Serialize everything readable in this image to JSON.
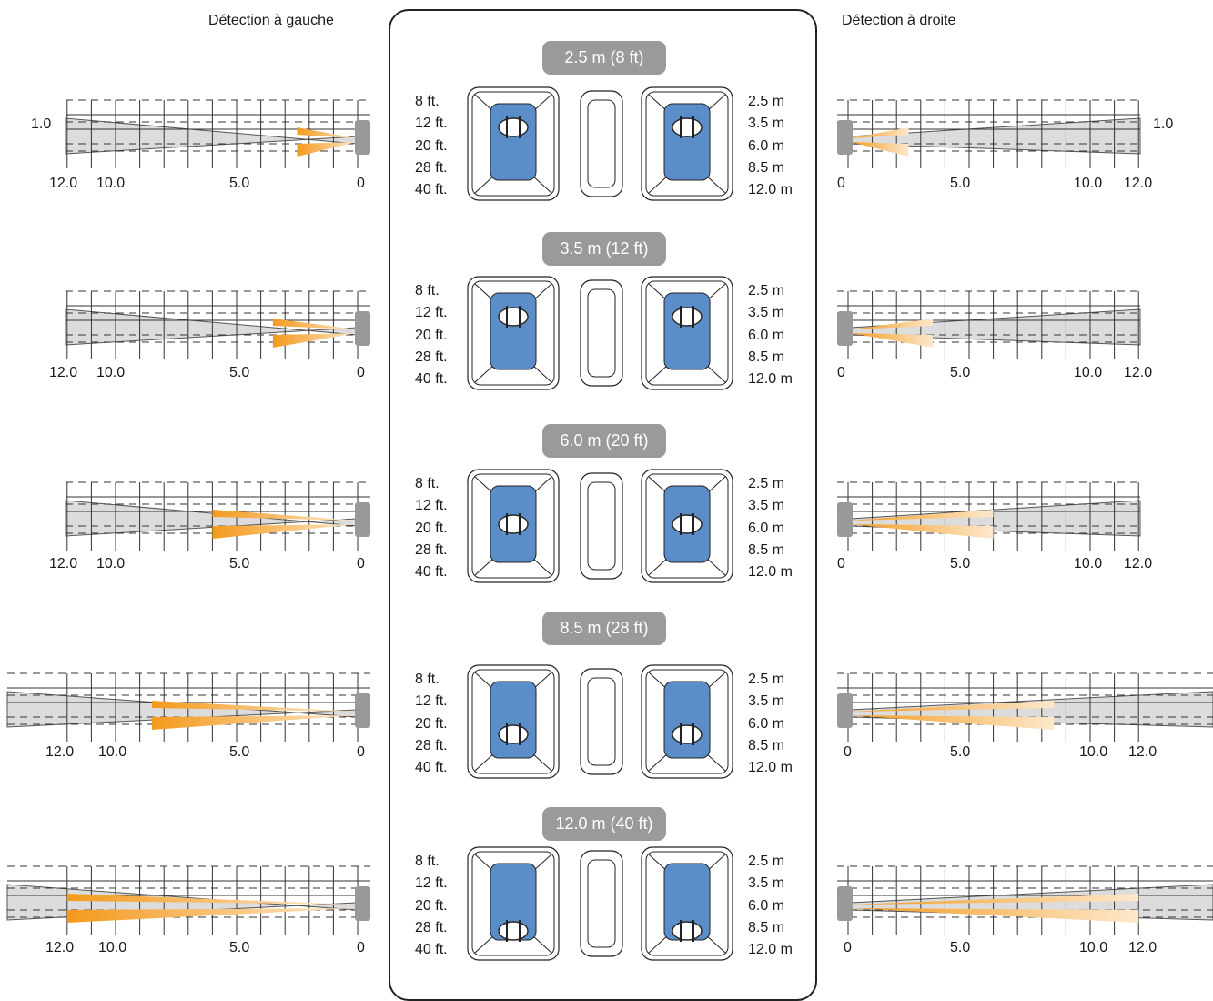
{
  "titles": {
    "left": "Détection à gauche",
    "right": "Détection à droite"
  },
  "rows": [
    {
      "range_label": "2.5 m (8 ft)",
      "range_m": 2.5,
      "highlight": 2
    },
    {
      "range_label": "3.5 m (12 ft)",
      "range_m": 3.5,
      "highlight": 2
    },
    {
      "range_label": "6.0 m (20 ft)",
      "range_m": 6.0,
      "highlight": 3
    },
    {
      "range_label": "8.5 m (28 ft)",
      "range_m": 8.5,
      "highlight": 4
    },
    {
      "range_label": "12.0 m (40 ft)",
      "range_m": 12.0,
      "highlight": 5
    }
  ],
  "ft_labels": [
    "8 ft.",
    "12 ft.",
    "20 ft.",
    "28 ft.",
    "40 ft."
  ],
  "m_labels": [
    "2.5 m",
    "3.5 m",
    "6.0 m",
    "8.5 m",
    "12.0 m"
  ],
  "axis": {
    "left": [
      "12.0",
      "10.0",
      "5.0",
      "0"
    ],
    "right": [
      "0",
      "5.0",
      "10.0",
      "12.0"
    ],
    "width_label": "1.0"
  },
  "colors": {
    "beam_dark": "#f39a1c",
    "beam_light": "#fde8cc",
    "zone_fill": "#dcdcdc",
    "sensor": "#999999",
    "highlight": "#5b8ec9",
    "pill": "#9a9a9a"
  }
}
